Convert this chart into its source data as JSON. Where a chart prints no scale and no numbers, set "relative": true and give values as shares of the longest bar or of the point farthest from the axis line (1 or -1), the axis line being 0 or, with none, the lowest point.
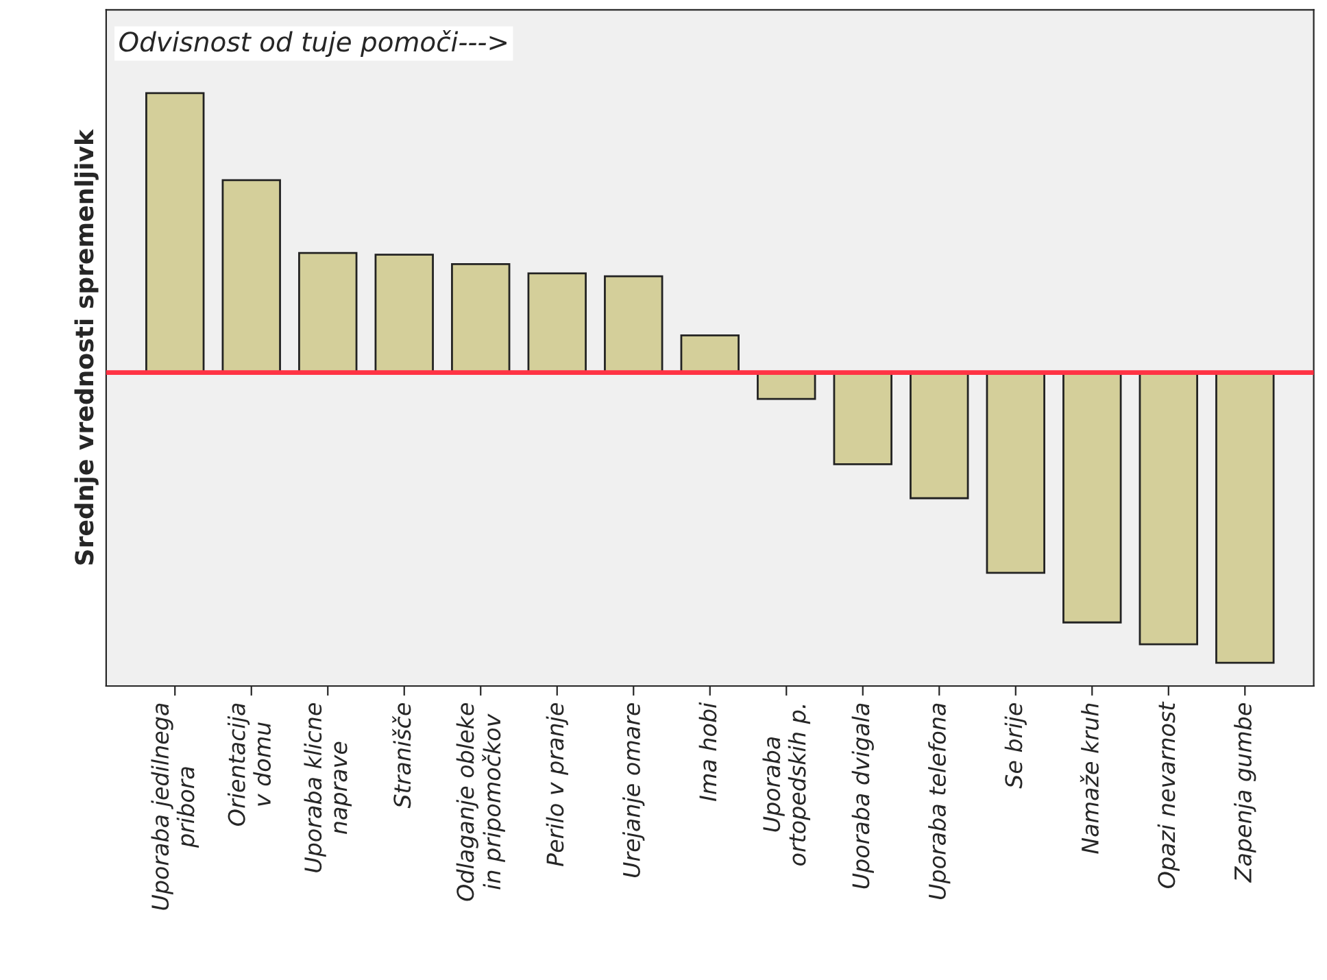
{
  "chart_data": {
    "type": "bar",
    "relative": true,
    "ylabel": "Srednje vrednosti spremenljivk",
    "categories": [
      "Uporaba jedilnega pribora",
      "Orientacija v domu",
      "Uporaba klicne naprave",
      "Stranišče",
      "Odlaganje obleke in pripomočkov",
      "Perilo v pranje",
      "Urejanje omare",
      "Ima hobi",
      "Uporaba ortopedskih p.",
      "Uporaba dvigala",
      "Uporaba telefona",
      "Se brije",
      "Namaže kruh",
      "Opazi nevarnost",
      "Zapenja gumbe"
    ],
    "values": [
      0.963,
      0.663,
      0.412,
      0.406,
      0.374,
      0.342,
      0.332,
      0.128,
      -0.091,
      -0.316,
      -0.433,
      -0.69,
      -0.861,
      -0.936,
      -1
    ],
    "color": "#d4cf9a",
    "ref_lines": [
      {
        "axis": "y",
        "value": 0,
        "color": "#ff3344"
      }
    ],
    "annotations": [
      "Odvisnost od tuje pomoči--->"
    ],
    "grid": false,
    "legend": false
  }
}
